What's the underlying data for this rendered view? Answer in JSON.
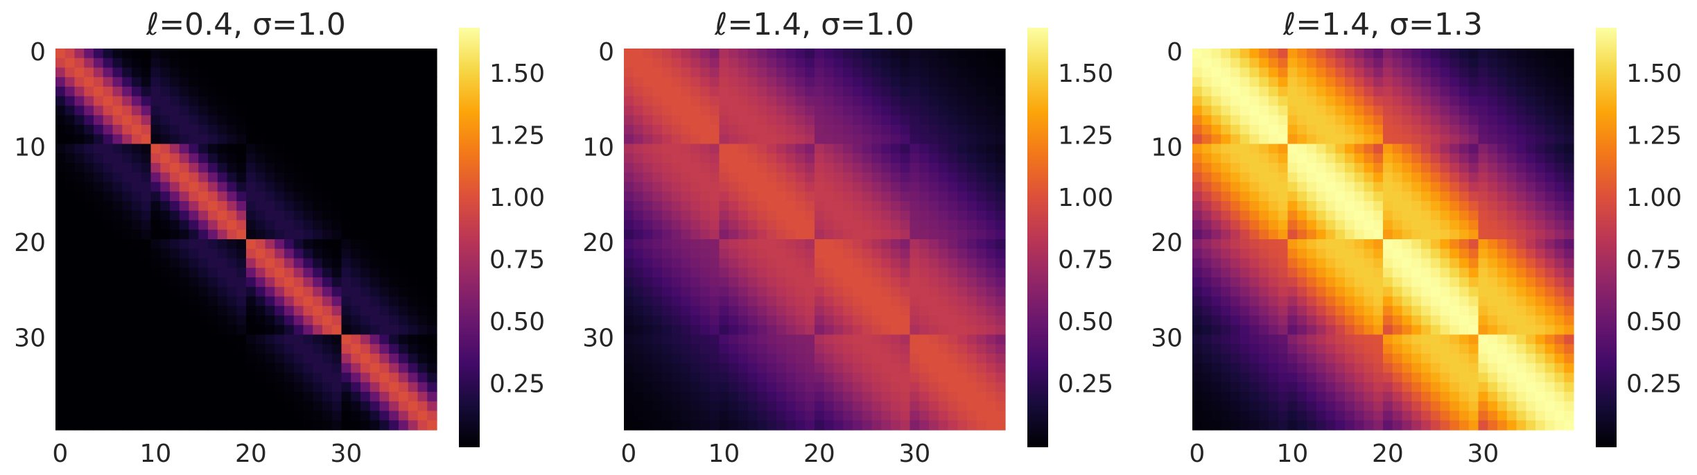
{
  "figure": {
    "background": "#ffffff",
    "colormap": "inferno"
  },
  "chart_data": [
    {
      "type": "heatmap",
      "title": "ℓ=0.4, σ=1.0",
      "lengthscale": 0.4,
      "sigma": 1.0,
      "n": 40,
      "block_size": 10,
      "x_ticks": [
        "0",
        "10",
        "20",
        "30"
      ],
      "y_ticks": [
        "0",
        "10",
        "20",
        "30"
      ],
      "colorbar": {
        "vmin": 0.0,
        "vmax": 1.69,
        "ticks": [
          "0.25",
          "0.50",
          "0.75",
          "1.00",
          "1.25",
          "1.50"
        ]
      },
      "grid": false
    },
    {
      "type": "heatmap",
      "title": "ℓ=1.4, σ=1.0",
      "lengthscale": 1.4,
      "sigma": 1.0,
      "n": 40,
      "block_size": 10,
      "x_ticks": [
        "0",
        "10",
        "20",
        "30"
      ],
      "y_ticks": [
        "0",
        "10",
        "20",
        "30"
      ],
      "colorbar": {
        "vmin": 0.0,
        "vmax": 1.69,
        "ticks": [
          "0.25",
          "0.50",
          "0.75",
          "1.00",
          "1.25",
          "1.50"
        ]
      },
      "grid": false
    },
    {
      "type": "heatmap",
      "title": "ℓ=1.4, σ=1.3",
      "lengthscale": 1.4,
      "sigma": 1.3,
      "n": 40,
      "block_size": 10,
      "x_ticks": [
        "0",
        "10",
        "20",
        "30"
      ],
      "y_ticks": [
        "0",
        "10",
        "20",
        "30"
      ],
      "colorbar": {
        "vmin": 0.0,
        "vmax": 1.69,
        "ticks": [
          "0.25",
          "0.50",
          "0.75",
          "1.00",
          "1.25",
          "1.50"
        ]
      },
      "grid": false
    }
  ]
}
